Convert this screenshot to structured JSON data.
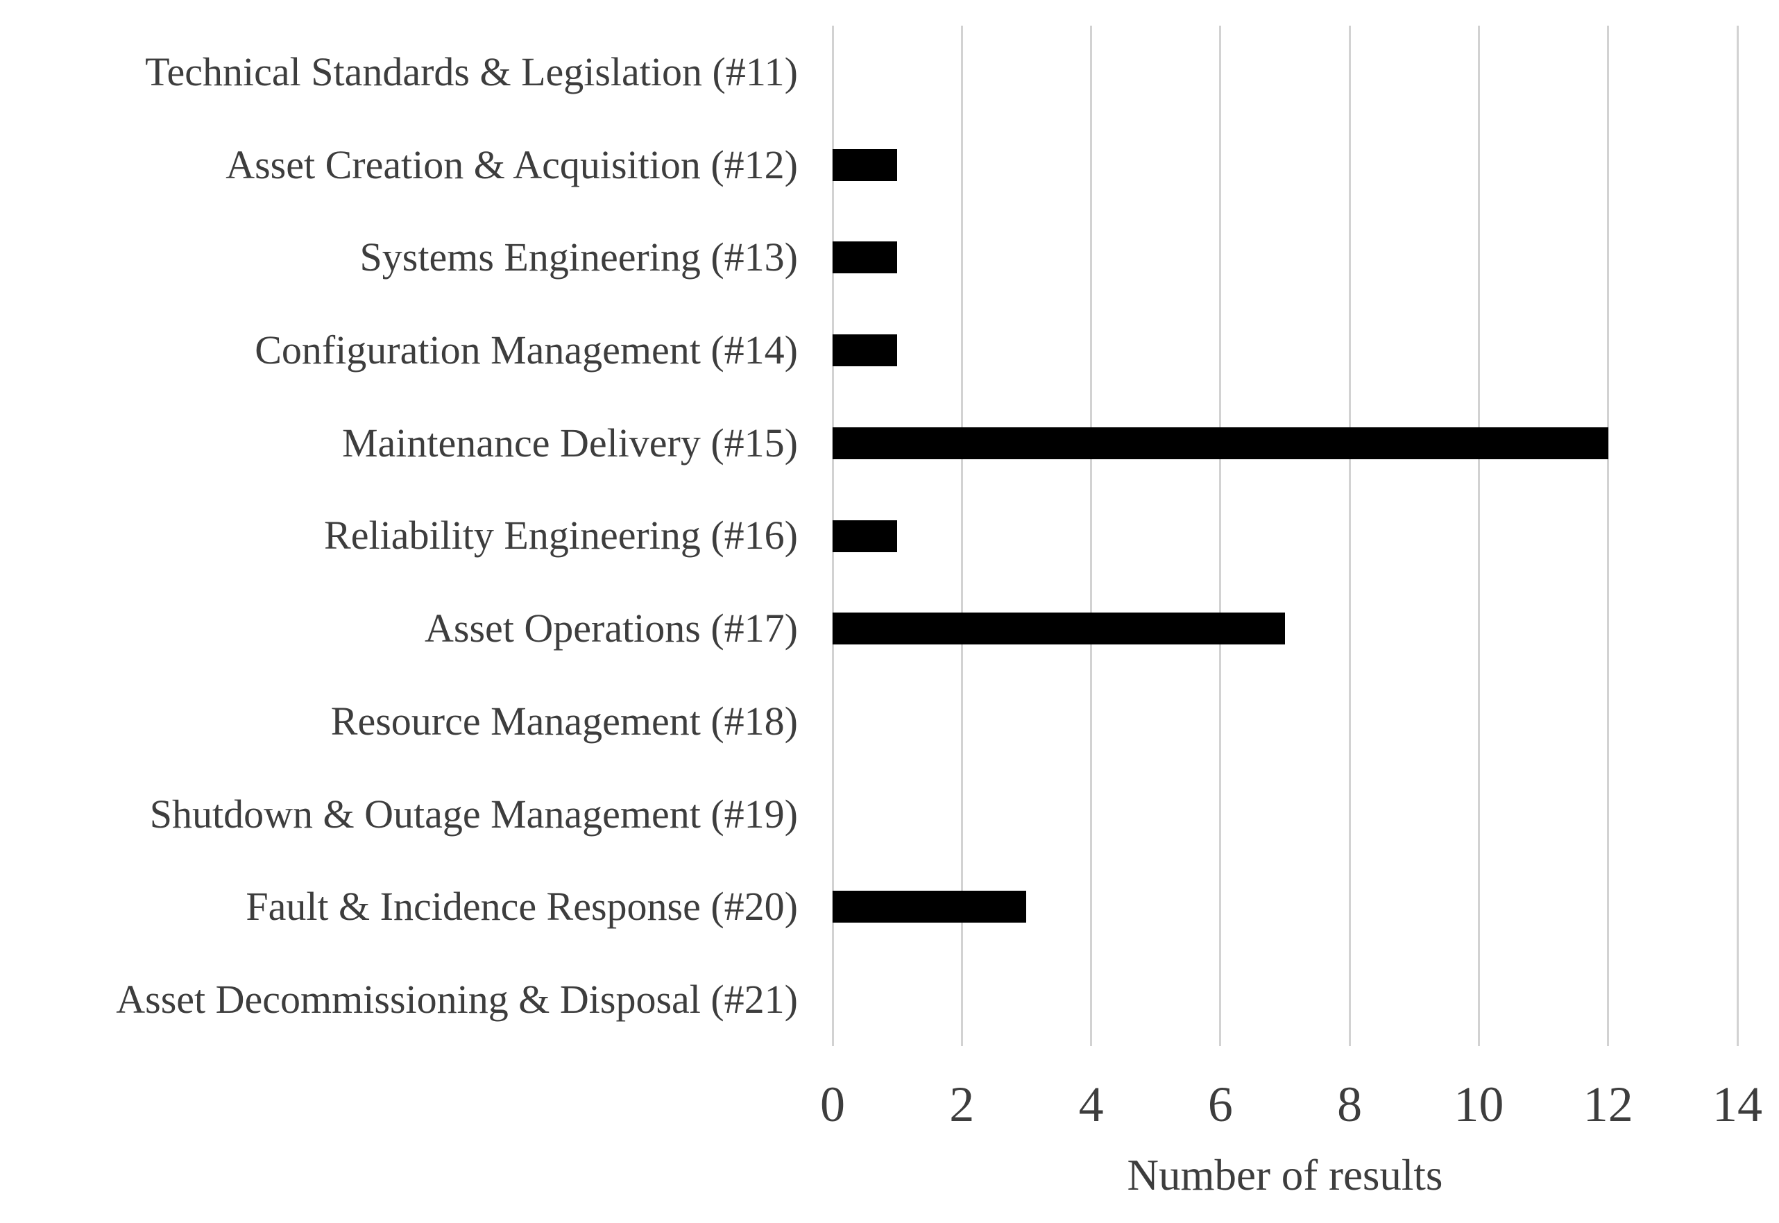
{
  "chart_data": {
    "type": "bar",
    "orientation": "horizontal",
    "title": "",
    "categories": [
      "Technical Standards & Legislation (#11)",
      "Asset Creation & Acquisition (#12)",
      "Systems Engineering (#13)",
      "Configuration Management (#14)",
      "Maintenance Delivery (#15)",
      "Reliability Engineering (#16)",
      "Asset Operations (#17)",
      "Resource Management (#18)",
      "Shutdown & Outage Management (#19)",
      "Fault & Incidence Response (#20)",
      "Asset Decommissioning & Disposal (#21)"
    ],
    "values": [
      0,
      1,
      1,
      1,
      12,
      1,
      7,
      0,
      0,
      3,
      0
    ],
    "xlabel": "Number of results",
    "ylabel": "",
    "xlim": [
      0,
      14
    ],
    "xticks": [
      0,
      2,
      4,
      6,
      8,
      10,
      12,
      14
    ],
    "grid": "vertical-only",
    "legend": "none",
    "bar_color": "#000000",
    "gridline_color": "#d2d2d2",
    "text_color": "#3d3d3d",
    "background_color": "#ffffff"
  }
}
